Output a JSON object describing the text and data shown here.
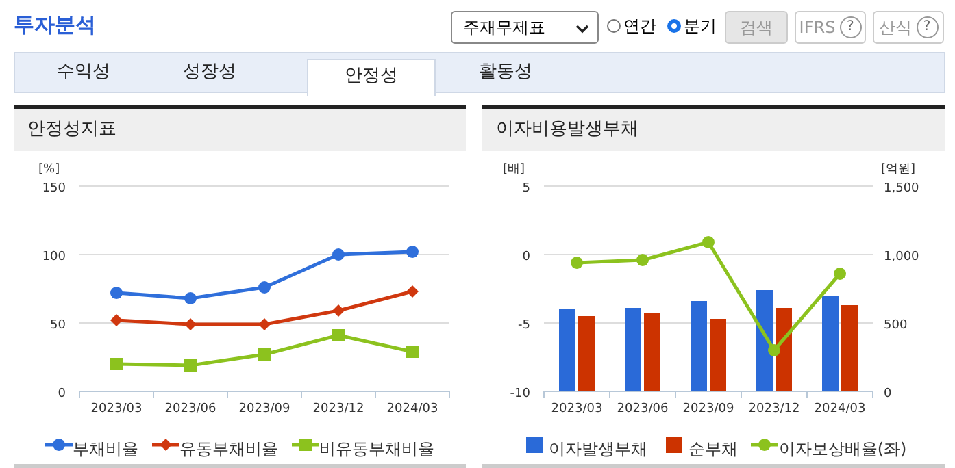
{
  "chart_data": [
    {
      "type": "other",
      "title": "투자분석",
      "annotations": [
        "주재무제표",
        "연간",
        "분기",
        "검색",
        "IFRS",
        "산식",
        "수익성",
        "성장성",
        "안정성",
        "활동성",
        "?",
        "?"
      ]
    },
    {
      "type": "line",
      "title": "안정성지표",
      "ylabel": "[%]",
      "categories": [
        "2023/03",
        "2023/06",
        "2023/09",
        "2023/12",
        "2024/03"
      ],
      "ylim": [
        0,
        150
      ],
      "yticks": [
        0,
        50,
        100,
        150
      ],
      "grid": "y",
      "legend": "bottom",
      "series": [
        {
          "name": "부채비율",
          "color": "#2f6fdb",
          "marker": "circle",
          "values": [
            72,
            68,
            76,
            100,
            102
          ]
        },
        {
          "name": "유동부채비율",
          "color": "#d0380f",
          "marker": "diamond",
          "values": [
            52,
            49,
            49,
            59,
            73
          ]
        },
        {
          "name": "비유동부채비율",
          "color": "#8cc21e",
          "marker": "square",
          "values": [
            20,
            19,
            27,
            41,
            29
          ]
        }
      ]
    },
    {
      "type": "bar",
      "title": "이자비용발생부채",
      "ylabel": "[배]",
      "y2label": "[억원]",
      "categories": [
        "2023/03",
        "2023/06",
        "2023/09",
        "2023/12",
        "2024/03"
      ],
      "ylim": [
        -10,
        5
      ],
      "yticks": [
        -10,
        -5,
        0,
        5
      ],
      "y2lim": [
        0,
        1500
      ],
      "y2ticks": [
        0,
        500,
        {
          "value": 1000,
          "label": "1,000"
        },
        {
          "value": 1500,
          "label": "1,500"
        }
      ],
      "grid": "y",
      "legend": "bottom",
      "series": [
        {
          "name": "이자발생부채",
          "color": "#2a6ad8",
          "axis": "y2",
          "values": [
            600,
            610,
            660,
            740,
            700
          ]
        },
        {
          "name": "순부채",
          "color": "#cc3300",
          "axis": "y2",
          "values": [
            550,
            570,
            530,
            610,
            630
          ]
        },
        {
          "name": "이자보상배율(좌)",
          "type": "line",
          "color": "#8cc21e",
          "marker": "circle",
          "values": [
            -0.6,
            -0.4,
            0.9,
            -7,
            -1.4
          ]
        }
      ]
    }
  ]
}
